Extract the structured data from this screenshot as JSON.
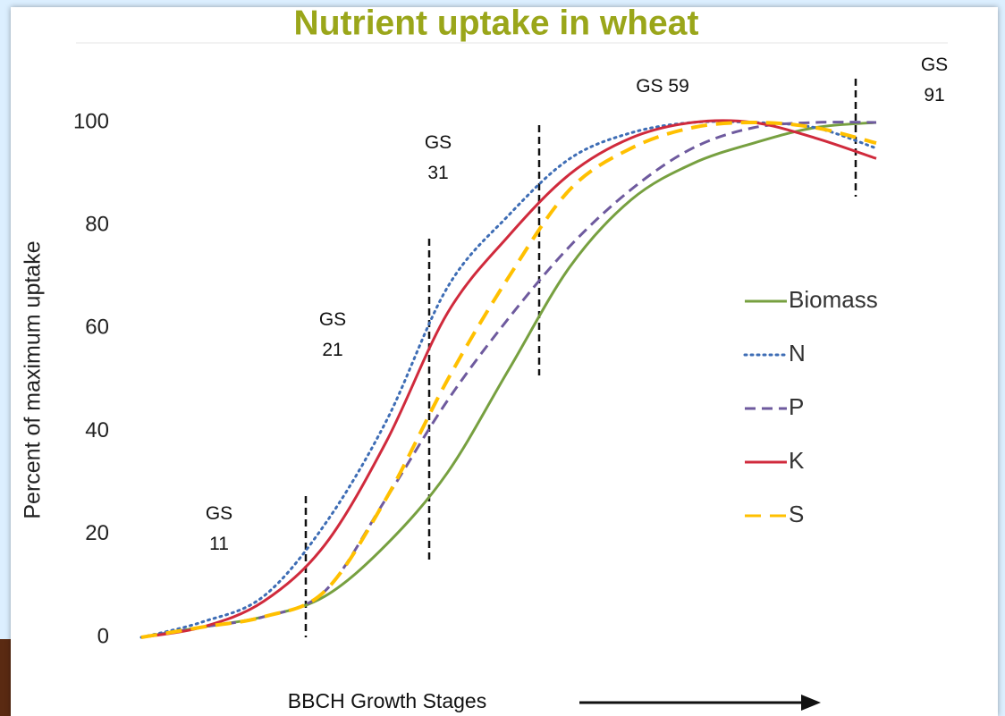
{
  "chart_data": {
    "type": "line",
    "title": "Nutrient uptake in wheat",
    "y_label": "Percent of maximum uptake",
    "x_label": "BBCH Growth Stages",
    "categories": [
      null,
      null,
      null,
      null,
      null,
      null,
      null,
      null,
      null,
      null,
      null,
      null,
      null
    ],
    "series": [
      {
        "name": "Biomass",
        "color": "#77a040",
        "style": "solid",
        "values": [
          0,
          2,
          4,
          8,
          18,
          32,
          52,
          72,
          85,
          92,
          96,
          99,
          100
        ]
      },
      {
        "name": "N",
        "color": "#3e6db5",
        "style": "dotted",
        "values": [
          0,
          3,
          8,
          22,
          42,
          68,
          82,
          93,
          98,
          100,
          100,
          99,
          95
        ]
      },
      {
        "name": "P",
        "color": "#6e5a9e",
        "style": "dashed",
        "values": [
          0,
          2,
          4,
          9,
          27,
          46,
          62,
          76,
          87,
          95,
          99,
          100,
          100
        ]
      },
      {
        "name": "K",
        "color": "#d02a3c",
        "style": "solid",
        "values": [
          0,
          2,
          7,
          18,
          38,
          63,
          78,
          90,
          97,
          100,
          100,
          97,
          93
        ]
      },
      {
        "name": "S",
        "color": "#ffc000",
        "style": "longdash",
        "values": [
          0,
          2,
          4,
          9,
          27,
          50,
          70,
          87,
          95,
          99,
          100,
          99,
          96
        ]
      }
    ],
    "ylim": [
      0,
      100
    ],
    "yticks": [
      0,
      20,
      40,
      60,
      80,
      100
    ],
    "annotations": [
      "GS 11",
      "GS 21",
      "GS 31",
      "GS 59",
      "GS 91"
    ]
  }
}
